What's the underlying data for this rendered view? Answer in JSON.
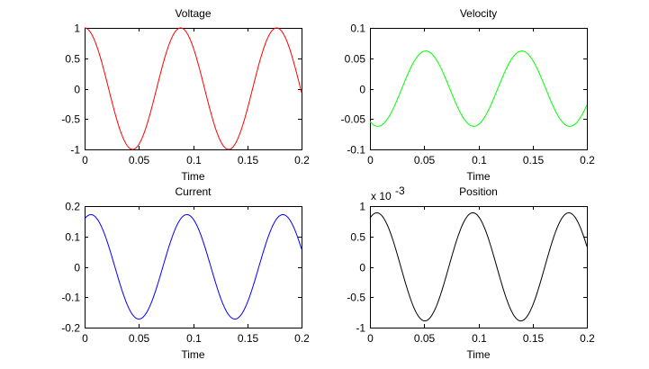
{
  "chart_data": [
    {
      "type": "line",
      "title": "Voltage",
      "xlabel": "Time",
      "ylabel": "",
      "xlim": [
        0,
        0.2
      ],
      "ylim": [
        -1,
        1
      ],
      "xticks": [
        0,
        0.05,
        0.1,
        0.15,
        0.2
      ],
      "xtick_labels": [
        "0",
        "0.05",
        "0.1",
        "0.15",
        "0.2"
      ],
      "yticks": [
        -1,
        -0.5,
        0,
        0.5,
        1
      ],
      "ytick_labels": [
        "-1",
        "-0.5",
        "0",
        "0.5",
        "1"
      ],
      "exponent_label": "",
      "grid": false,
      "series": [
        {
          "name": "Voltage",
          "color": "#ff0000",
          "amplitude": 1.0,
          "frequency_hz": 11.3,
          "phase_rad": 0.0,
          "t_start": 0,
          "t_end": 0.2,
          "samples": 200
        }
      ]
    },
    {
      "type": "line",
      "title": "Velocity",
      "xlabel": "Time",
      "ylabel": "",
      "xlim": [
        0,
        0.2
      ],
      "ylim": [
        -0.1,
        0.1
      ],
      "xticks": [
        0,
        0.05,
        0.1,
        0.15,
        0.2
      ],
      "xtick_labels": [
        "0",
        "0.05",
        "0.1",
        "0.15",
        "0.2"
      ],
      "yticks": [
        -0.1,
        -0.05,
        0,
        0.05,
        0.1
      ],
      "ytick_labels": [
        "-0.1",
        "-0.05",
        "0",
        "0.05",
        "0.1"
      ],
      "exponent_label": "",
      "grid": false,
      "series": [
        {
          "name": "Velocity",
          "color": "#00ff00",
          "amplitude": 0.062,
          "frequency_hz": 11.3,
          "phase_rad": 2.63,
          "t_start": 0,
          "t_end": 0.2,
          "samples": 200
        }
      ]
    },
    {
      "type": "line",
      "title": "Current",
      "xlabel": "Time",
      "ylabel": "",
      "xlim": [
        0,
        0.2
      ],
      "ylim": [
        -0.2,
        0.2
      ],
      "xticks": [
        0,
        0.05,
        0.1,
        0.15,
        0.2
      ],
      "xtick_labels": [
        "0",
        "0.05",
        "0.1",
        "0.15",
        "0.2"
      ],
      "yticks": [
        -0.2,
        -0.1,
        0,
        0.1,
        0.2
      ],
      "ytick_labels": [
        "-0.2",
        "-0.1",
        "0",
        "0.1",
        "0.2"
      ],
      "exponent_label": "",
      "grid": false,
      "series": [
        {
          "name": "Current",
          "color": "#0000ff",
          "amplitude": 0.172,
          "frequency_hz": 11.3,
          "phase_rad": -0.41,
          "t_start": 0,
          "t_end": 0.2,
          "samples": 200
        }
      ]
    },
    {
      "type": "line",
      "title": "Position",
      "xlabel": "Time",
      "ylabel": "",
      "xlim": [
        0,
        0.2
      ],
      "ylim": [
        -1,
        1
      ],
      "xticks": [
        0,
        0.05,
        0.1,
        0.15,
        0.2
      ],
      "xtick_labels": [
        "0",
        "0.05",
        "0.1",
        "0.15",
        "0.2"
      ],
      "yticks": [
        -1,
        -0.5,
        0,
        0.5,
        1
      ],
      "ytick_labels": [
        "-1",
        "-0.5",
        "0",
        "0.5",
        "1"
      ],
      "exponent_label": "x 10",
      "exponent_power": "-3",
      "grid": false,
      "series": [
        {
          "name": "Position",
          "color": "#000000",
          "amplitude": 0.89,
          "frequency_hz": 11.3,
          "phase_rad": -0.45,
          "t_start": 0,
          "t_end": 0.2,
          "samples": 200
        }
      ]
    }
  ]
}
